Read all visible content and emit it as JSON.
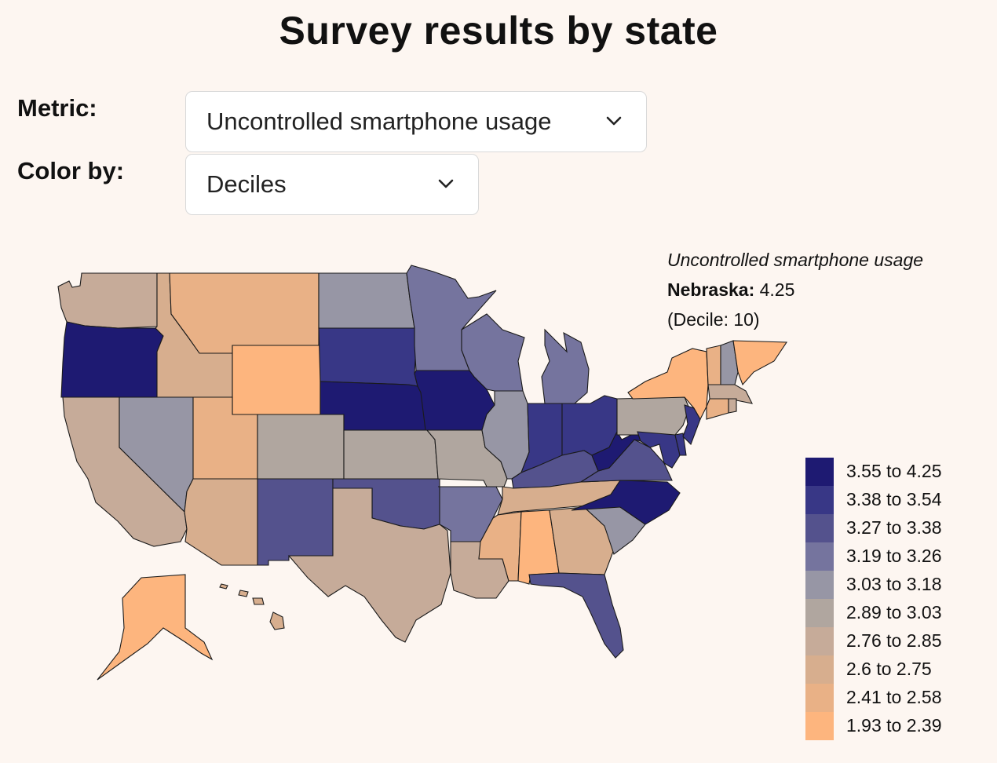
{
  "title": "Survey results by state",
  "controls": {
    "metric_label": "Metric:",
    "metric_value": "Uncontrolled smartphone usage",
    "color_label": "Color by:",
    "color_value": "Deciles"
  },
  "tooltip": {
    "metric": "Uncontrolled smartphone usage",
    "state": "Nebraska:",
    "value": "4.25",
    "decile": "(Decile: 10)"
  },
  "legend": [
    {
      "label": "3.55 to 4.25",
      "color": "#1e1a72"
    },
    {
      "label": "3.38 to 3.54",
      "color": "#383786"
    },
    {
      "label": "3.27 to 3.38",
      "color": "#54528d"
    },
    {
      "label": "3.19 to 3.26",
      "color": "#75749e"
    },
    {
      "label": "3.03 to 3.18",
      "color": "#9796a5"
    },
    {
      "label": "2.89 to 3.03",
      "color": "#b0a69f"
    },
    {
      "label": "2.76 to 2.85",
      "color": "#c6ab99"
    },
    {
      "label": "2.6 to 2.75",
      "color": "#d7ae8e"
    },
    {
      "label": "2.41 to 2.58",
      "color": "#e9b186"
    },
    {
      "label": "1.93 to 2.39",
      "color": "#fdb57e"
    }
  ],
  "states": [
    {
      "name": "Washington",
      "decile": 4
    },
    {
      "name": "Oregon",
      "decile": 10
    },
    {
      "name": "California",
      "decile": 4
    },
    {
      "name": "Nevada",
      "decile": 6
    },
    {
      "name": "Idaho",
      "decile": 3
    },
    {
      "name": "Montana",
      "decile": 2
    },
    {
      "name": "Wyoming",
      "decile": 1
    },
    {
      "name": "Utah",
      "decile": 2
    },
    {
      "name": "Arizona",
      "decile": 3
    },
    {
      "name": "Colorado",
      "decile": 5
    },
    {
      "name": "New Mexico",
      "decile": 8
    },
    {
      "name": "North Dakota",
      "decile": 6
    },
    {
      "name": "South Dakota",
      "decile": 9
    },
    {
      "name": "Nebraska",
      "decile": 10
    },
    {
      "name": "Kansas",
      "decile": 5
    },
    {
      "name": "Oklahoma",
      "decile": 8
    },
    {
      "name": "Texas",
      "decile": 4
    },
    {
      "name": "Minnesota",
      "decile": 7
    },
    {
      "name": "Iowa",
      "decile": 10
    },
    {
      "name": "Missouri",
      "decile": 5
    },
    {
      "name": "Arkansas",
      "decile": 7
    },
    {
      "name": "Louisiana",
      "decile": 4
    },
    {
      "name": "Wisconsin",
      "decile": 7
    },
    {
      "name": "Illinois",
      "decile": 6
    },
    {
      "name": "Michigan",
      "decile": 7
    },
    {
      "name": "Indiana",
      "decile": 9
    },
    {
      "name": "Ohio",
      "decile": 9
    },
    {
      "name": "Kentucky",
      "decile": 8
    },
    {
      "name": "Tennessee",
      "decile": 3
    },
    {
      "name": "Mississippi",
      "decile": 2
    },
    {
      "name": "Alabama",
      "decile": 1
    },
    {
      "name": "Georgia",
      "decile": 3
    },
    {
      "name": "Florida",
      "decile": 8
    },
    {
      "name": "South Carolina",
      "decile": 6
    },
    {
      "name": "North Carolina",
      "decile": 10
    },
    {
      "name": "Virginia",
      "decile": 8
    },
    {
      "name": "West Virginia",
      "decile": 10
    },
    {
      "name": "Pennsylvania",
      "decile": 5
    },
    {
      "name": "New York",
      "decile": 1
    },
    {
      "name": "Maryland",
      "decile": 9
    },
    {
      "name": "Delaware",
      "decile": 9
    },
    {
      "name": "New Jersey",
      "decile": 9
    },
    {
      "name": "Connecticut",
      "decile": 2
    },
    {
      "name": "Rhode Island",
      "decile": 4
    },
    {
      "name": "Massachusetts",
      "decile": 4
    },
    {
      "name": "Vermont",
      "decile": 2
    },
    {
      "name": "New Hampshire",
      "decile": 6
    },
    {
      "name": "Maine",
      "decile": 1
    },
    {
      "name": "Alaska",
      "decile": 1
    },
    {
      "name": "Hawaii",
      "decile": 3
    }
  ]
}
